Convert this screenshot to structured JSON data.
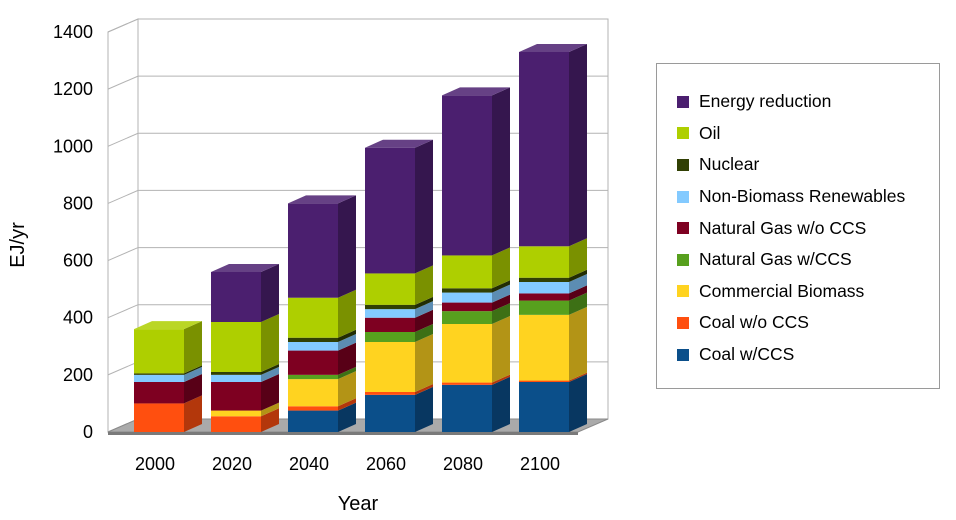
{
  "chart_data": {
    "type": "bar",
    "stacked": true,
    "three_d": true,
    "title": "",
    "xlabel": "Year",
    "ylabel": "EJ/yr",
    "ylim": [
      0,
      1400
    ],
    "yticks": [
      0,
      200,
      400,
      600,
      800,
      1000,
      1200,
      1400
    ],
    "grid": true,
    "legend_position": "right",
    "categories": [
      "2000",
      "2020",
      "2040",
      "2060",
      "2080",
      "2100"
    ],
    "series": [
      {
        "name": "Coal w/CCS",
        "color": "#0b4f8a",
        "values": [
          0,
          0,
          75,
          130,
          165,
          175
        ]
      },
      {
        "name": "Coal w/o CCS",
        "color": "#ff4f0f",
        "values": [
          100,
          55,
          15,
          10,
          8,
          5
        ]
      },
      {
        "name": "Commercial Biomass",
        "color": "#ffd320",
        "values": [
          0,
          20,
          95,
          175,
          205,
          230
        ]
      },
      {
        "name": "Natural Gas w/CCS",
        "color": "#57a01e",
        "values": [
          0,
          0,
          15,
          35,
          45,
          50
        ]
      },
      {
        "name": "Natural Gas w/o CCS",
        "color": "#7e0021",
        "values": [
          75,
          100,
          85,
          50,
          30,
          25
        ]
      },
      {
        "name": "Non-Biomass Renewables",
        "color": "#83caff",
        "values": [
          25,
          25,
          30,
          30,
          35,
          40
        ]
      },
      {
        "name": "Nuclear",
        "color": "#314004",
        "values": [
          5,
          10,
          15,
          15,
          15,
          15
        ]
      },
      {
        "name": "Oil",
        "color": "#aecf00",
        "values": [
          155,
          175,
          140,
          110,
          115,
          110
        ]
      },
      {
        "name": "Energy reduction",
        "color": "#4b1f6f",
        "values": [
          0,
          175,
          330,
          440,
          560,
          680
        ]
      }
    ],
    "legend_order": [
      "Energy reduction",
      "Oil",
      "Nuclear",
      "Non-Biomass Renewables",
      "Natural Gas w/o CCS",
      "Natural Gas w/CCS",
      "Commercial Biomass",
      "Coal w/o CCS",
      "Coal w/CCS"
    ]
  }
}
